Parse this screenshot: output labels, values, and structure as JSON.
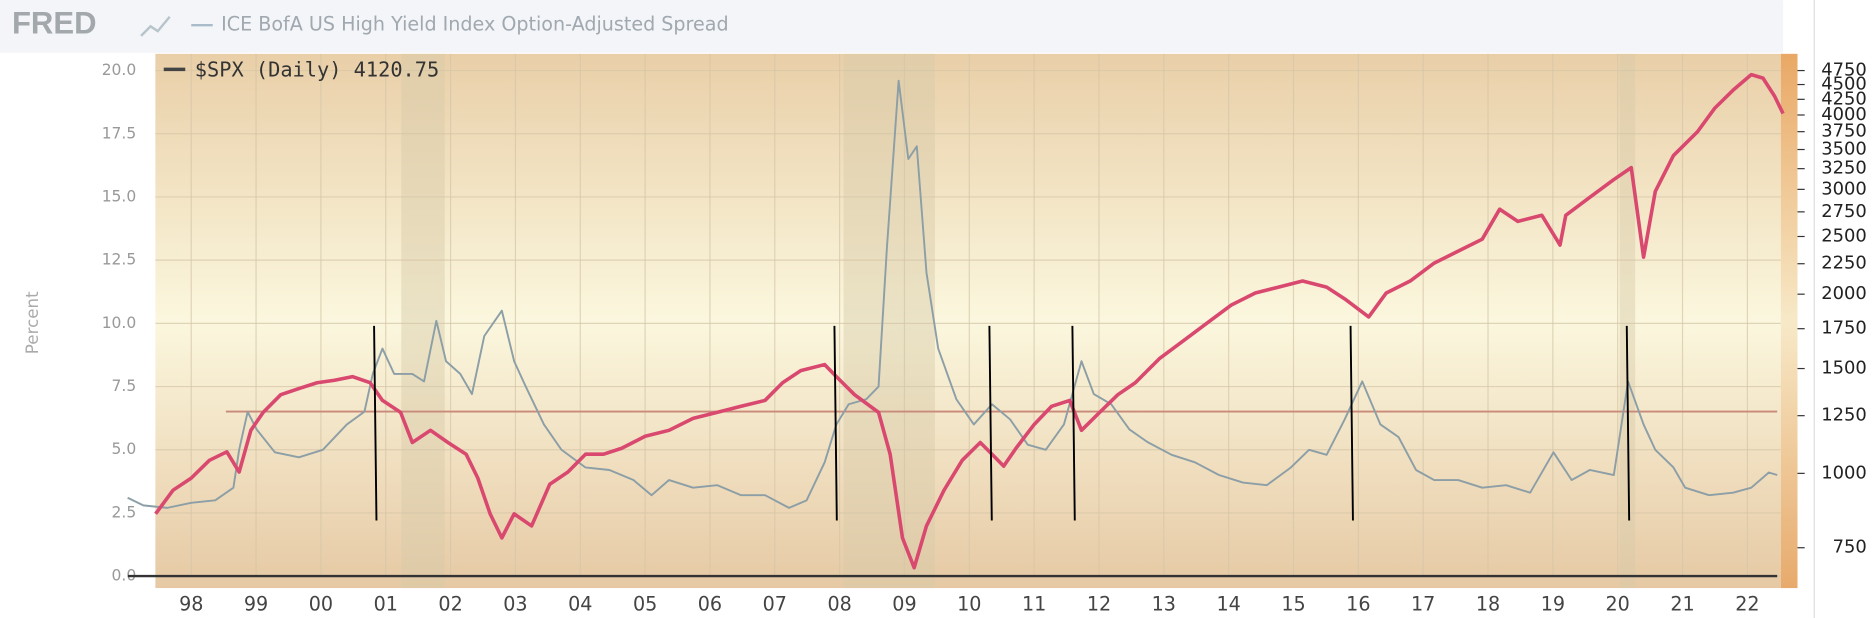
{
  "chart_data": {
    "type": "line",
    "logo": "FRED",
    "ylabel": "Percent",
    "xlim": [
      1997.0,
      2022.6
    ],
    "ylim": [
      0,
      20
    ],
    "yticks": [
      {
        "value": 0,
        "label": "0.0"
      },
      {
        "value": 2.5,
        "label": "2.5"
      },
      {
        "value": 5,
        "label": "5.0"
      },
      {
        "value": 7.5,
        "label": "7.5"
      },
      {
        "value": 10,
        "label": "10.0"
      },
      {
        "value": 12.5,
        "label": "12.5"
      },
      {
        "value": 15,
        "label": "15.0"
      },
      {
        "value": 17.5,
        "label": "17.5"
      },
      {
        "value": 20,
        "label": "20.0"
      }
    ],
    "y2lim": [
      672,
      4750
    ],
    "y2log": true,
    "y2ticks": [
      750,
      1000,
      1250,
      1500,
      1750,
      2000,
      2250,
      2500,
      2750,
      3000,
      3250,
      3500,
      3750,
      4000,
      4250,
      4500,
      4750
    ],
    "xticks": [
      {
        "value": 1998,
        "label": "98"
      },
      {
        "value": 1999,
        "label": "99"
      },
      {
        "value": 2000,
        "label": "00"
      },
      {
        "value": 2001,
        "label": "01"
      },
      {
        "value": 2002,
        "label": "02"
      },
      {
        "value": 2003,
        "label": "03"
      },
      {
        "value": 2004,
        "label": "04"
      },
      {
        "value": 2005,
        "label": "05"
      },
      {
        "value": 2006,
        "label": "06"
      },
      {
        "value": 2007,
        "label": "07"
      },
      {
        "value": 2008,
        "label": "08"
      },
      {
        "value": 2009,
        "label": "09"
      },
      {
        "value": 2010,
        "label": "10"
      },
      {
        "value": 2011,
        "label": "11"
      },
      {
        "value": 2012,
        "label": "12"
      },
      {
        "value": 2013,
        "label": "13"
      },
      {
        "value": 2014,
        "label": "14"
      },
      {
        "value": 2015,
        "label": "15"
      },
      {
        "value": 2016,
        "label": "16"
      },
      {
        "value": 2017,
        "label": "17"
      },
      {
        "value": 2018,
        "label": "18"
      },
      {
        "value": 2019,
        "label": "19"
      },
      {
        "value": 2020,
        "label": "20"
      },
      {
        "value": 2021,
        "label": "21"
      },
      {
        "value": 2022,
        "label": "22"
      }
    ],
    "grid": true,
    "recessions": [
      [
        2001.24,
        2001.91
      ],
      [
        2008.06,
        2009.47
      ],
      [
        2020.03,
        2020.27
      ]
    ],
    "hline": {
      "value": 1270,
      "axis": "y2",
      "color": "#c98a7a"
    },
    "vlines": {
      "x": [
        2000.82,
        2007.92,
        2010.31,
        2011.59,
        2015.88,
        2020.14
      ],
      "range": [
        2.2,
        9.9
      ],
      "color": "#000000"
    },
    "series": [
      {
        "name": "ICE BofA US High Yield Index Option-Adjusted Spread",
        "color": "#8c9ea6",
        "x": [
          1997.02,
          1997.26,
          1997.63,
          1998.0,
          1998.37,
          1998.65,
          1998.74,
          1998.87,
          1999.01,
          1999.29,
          1999.66,
          2000.03,
          2000.4,
          2000.67,
          2000.8,
          2000.95,
          2001.13,
          2001.41,
          2001.59,
          2001.78,
          2001.93,
          2002.15,
          2002.33,
          2002.52,
          2002.79,
          2002.98,
          2003.16,
          2003.44,
          2003.71,
          2004.08,
          2004.45,
          2004.82,
          2005.1,
          2005.37,
          2005.74,
          2006.11,
          2006.48,
          2006.85,
          2007.22,
          2007.49,
          2007.77,
          2007.95,
          2008.14,
          2008.41,
          2008.6,
          2008.73,
          2008.91,
          2009.06,
          2009.19,
          2009.34,
          2009.52,
          2009.8,
          2010.07,
          2010.35,
          2010.63,
          2010.9,
          2011.18,
          2011.46,
          2011.73,
          2011.92,
          2012.19,
          2012.47,
          2012.75,
          2013.12,
          2013.48,
          2013.85,
          2014.22,
          2014.59,
          2014.96,
          2015.24,
          2015.51,
          2015.79,
          2016.06,
          2016.34,
          2016.62,
          2016.89,
          2017.17,
          2017.54,
          2017.91,
          2018.28,
          2018.65,
          2019.01,
          2019.29,
          2019.57,
          2019.94,
          2020.16,
          2020.4,
          2020.58,
          2020.86,
          2021.04,
          2021.41,
          2021.78,
          2022.06,
          2022.33,
          2022.46
        ],
        "values": [
          3.1,
          2.8,
          2.7,
          2.9,
          3.0,
          3.5,
          5.0,
          6.5,
          5.8,
          4.9,
          4.7,
          5.0,
          6.0,
          6.5,
          8.0,
          9.0,
          8.0,
          8.0,
          7.7,
          10.1,
          8.5,
          8.0,
          7.2,
          9.5,
          10.5,
          8.5,
          7.5,
          6.0,
          5.0,
          4.3,
          4.2,
          3.8,
          3.2,
          3.8,
          3.5,
          3.6,
          3.2,
          3.2,
          2.7,
          3.0,
          4.5,
          6.0,
          6.8,
          7.0,
          7.5,
          13.0,
          19.6,
          16.5,
          17.0,
          12.0,
          9.0,
          7.0,
          6.0,
          6.8,
          6.2,
          5.2,
          5.0,
          6.0,
          8.5,
          7.2,
          6.8,
          5.8,
          5.3,
          4.8,
          4.5,
          4.0,
          3.7,
          3.6,
          4.3,
          5.0,
          4.8,
          6.2,
          7.7,
          6.0,
          5.5,
          4.2,
          3.8,
          3.8,
          3.5,
          3.6,
          3.3,
          4.9,
          3.8,
          4.2,
          4.0,
          7.7,
          6.0,
          5.0,
          4.3,
          3.5,
          3.2,
          3.3,
          3.5,
          4.1,
          4.0
        ]
      },
      {
        "name": "$SPX (Daily) 4120.75",
        "color": "#d9486e",
        "axis": "y2",
        "x": [
          1997.45,
          1997.72,
          1998.0,
          1998.28,
          1998.55,
          1998.74,
          1998.92,
          1999.11,
          1999.38,
          1999.66,
          1999.94,
          2000.21,
          2000.49,
          2000.76,
          2000.95,
          2001.23,
          2001.41,
          2001.69,
          2001.96,
          2002.24,
          2002.42,
          2002.61,
          2002.79,
          2002.98,
          2003.25,
          2003.53,
          2003.81,
          2004.08,
          2004.36,
          2004.64,
          2005.0,
          2005.37,
          2005.74,
          2006.11,
          2006.48,
          2006.85,
          2007.12,
          2007.4,
          2007.77,
          2007.95,
          2008.23,
          2008.6,
          2008.78,
          2008.97,
          2009.15,
          2009.34,
          2009.61,
          2009.89,
          2010.17,
          2010.35,
          2010.53,
          2010.72,
          2011.0,
          2011.27,
          2011.55,
          2011.73,
          2012.01,
          2012.29,
          2012.56,
          2012.93,
          2013.3,
          2013.67,
          2014.04,
          2014.41,
          2014.77,
          2015.14,
          2015.51,
          2015.79,
          2016.16,
          2016.43,
          2016.8,
          2017.17,
          2017.54,
          2017.91,
          2018.18,
          2018.46,
          2018.83,
          2019.11,
          2019.2,
          2019.57,
          2019.94,
          2020.21,
          2020.4,
          2020.58,
          2020.86,
          2021.23,
          2021.5,
          2021.78,
          2022.06,
          2022.24,
          2022.42,
          2022.55
        ],
        "values": [
          855,
          937,
          982,
          1052,
          1087,
          1005,
          1181,
          1266,
          1356,
          1388,
          1420,
          1434,
          1454,
          1420,
          1326,
          1266,
          1127,
          1181,
          1127,
          1077,
          982,
          855,
          779,
          855,
          816,
          959,
          1005,
          1077,
          1077,
          1102,
          1154,
          1181,
          1237,
          1266,
          1296,
          1326,
          1420,
          1488,
          1523,
          1454,
          1356,
          1266,
          1077,
          779,
          694,
          816,
          937,
          1052,
          1127,
          1077,
          1028,
          1102,
          1208,
          1296,
          1326,
          1181,
          1266,
          1356,
          1420,
          1558,
          1670,
          1789,
          1918,
          2009,
          2055,
          2104,
          2055,
          1964,
          1832,
          2009,
          2104,
          2255,
          2362,
          2474,
          2778,
          2650,
          2714,
          2418,
          2714,
          2908,
          3116,
          3264,
          2308,
          2977,
          3420,
          3749,
          4110,
          4404,
          4676,
          4614,
          4302,
          4022
        ]
      }
    ]
  }
}
